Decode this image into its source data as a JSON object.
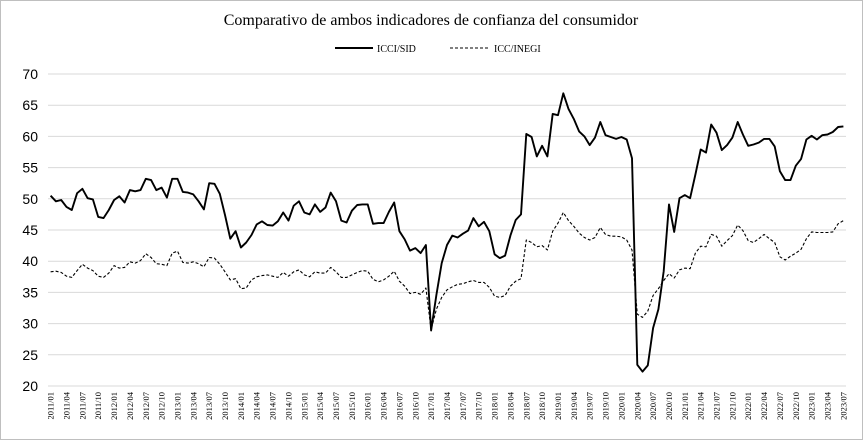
{
  "chart_data": {
    "type": "line",
    "title": "Comparativo de ambos indicadores de confianza del consumidor",
    "xlabel": "",
    "ylabel": "",
    "ylim": [
      20,
      70
    ],
    "yticks": [
      20,
      25,
      30,
      35,
      40,
      45,
      50,
      55,
      60,
      65,
      70
    ],
    "grid": "horizontal",
    "legend_position": "top-center",
    "x_start": "2011/01",
    "x_tick_labels": [
      "2011/01",
      "2011/04",
      "2011/07",
      "2011/10",
      "2012/01",
      "2012/04",
      "2012/07",
      "2012/10",
      "2013/01",
      "2013/04",
      "2013/07",
      "2013/10",
      "2014/01",
      "2014/04",
      "2014/07",
      "2014/10",
      "2015/01",
      "2015/04",
      "2015/07",
      "2015/10",
      "2016/01",
      "2016/04",
      "2016/07",
      "2016/10",
      "2017/01",
      "2017/04",
      "2017/07",
      "2017/10",
      "2018/01",
      "2018/04",
      "2018/07",
      "2018/10",
      "2019/01",
      "2019/04",
      "2019/07",
      "2019/10",
      "2020/01",
      "2020/04",
      "2020/07",
      "2020/10",
      "2021/01",
      "2021/04",
      "2021/07",
      "2021/10",
      "2022/01",
      "2022/04",
      "2022/07",
      "2022/10",
      "2023/01",
      "2023/04",
      "2023/07"
    ],
    "series": [
      {
        "name": "ICCI/SID",
        "color": "#000000",
        "style": "solid",
        "values": [
          50.5,
          49.6,
          49.8,
          48.7,
          48.2,
          50.9,
          51.6,
          50.1,
          49.9,
          47.1,
          46.9,
          48.2,
          49.8,
          50.4,
          49.4,
          51.4,
          51.2,
          51.4,
          53.2,
          53.0,
          51.4,
          51.8,
          50.2,
          53.2,
          53.2,
          51.1,
          51.0,
          50.7,
          49.6,
          48.3,
          52.5,
          52.4,
          50.8,
          47.4,
          43.6,
          44.8,
          42.2,
          43.0,
          44.2,
          45.9,
          46.4,
          45.8,
          45.7,
          46.4,
          47.8,
          46.5,
          48.9,
          49.6,
          47.8,
          47.5,
          49.1,
          47.9,
          48.6,
          51.0,
          49.6,
          46.5,
          46.2,
          48.1,
          49.0,
          49.1,
          49.1,
          46.0,
          46.1,
          46.1,
          47.9,
          49.4,
          44.8,
          43.5,
          41.7,
          42.1,
          41.3,
          42.6,
          28.9,
          34.6,
          39.7,
          42.6,
          44.1,
          43.8,
          44.4,
          44.9,
          46.9,
          45.6,
          46.3,
          44.8,
          41.1,
          40.5,
          40.9,
          44.1,
          46.6,
          47.5,
          60.4,
          59.9,
          56.8,
          58.5,
          56.8,
          63.6,
          63.4,
          66.9,
          64.4,
          62.8,
          60.8,
          60.0,
          58.6,
          59.8,
          62.3,
          60.2,
          59.9,
          59.6,
          59.9,
          59.5,
          56.5,
          23.4,
          22.3,
          23.3,
          29.3,
          32.3,
          38.4,
          49.1,
          44.7,
          50.1,
          50.6,
          50.1,
          53.9,
          57.9,
          57.4,
          61.9,
          60.6,
          57.8,
          58.6,
          59.8,
          62.3,
          60.3,
          58.5,
          58.7,
          59.0,
          59.6,
          59.6,
          58.4,
          54.4,
          53.0,
          53.0,
          55.3,
          56.4,
          59.5,
          60.1,
          59.5,
          60.2,
          60.3,
          60.7,
          61.5,
          61.6
        ]
      },
      {
        "name": "ICC/INEGI",
        "color": "#000000",
        "style": "dashed",
        "values": [
          38.3,
          38.4,
          38.2,
          37.6,
          37.4,
          38.5,
          39.5,
          38.9,
          38.5,
          37.6,
          37.4,
          38.1,
          39.3,
          38.9,
          39.0,
          39.9,
          39.7,
          40.1,
          41.2,
          40.6,
          39.6,
          39.5,
          39.3,
          41.3,
          41.6,
          39.8,
          39.7,
          39.9,
          39.6,
          39.1,
          40.6,
          40.5,
          39.5,
          38.3,
          37.0,
          37.2,
          35.6,
          35.7,
          37.0,
          37.5,
          37.7,
          37.8,
          37.6,
          37.4,
          38.2,
          37.6,
          38.3,
          38.6,
          37.8,
          37.5,
          38.3,
          38.1,
          38.1,
          39.0,
          38.3,
          37.4,
          37.4,
          37.8,
          38.2,
          38.5,
          38.4,
          37.1,
          36.7,
          37.0,
          37.6,
          38.4,
          36.8,
          36.0,
          34.8,
          35.0,
          34.7,
          35.7,
          29.0,
          32.3,
          34.2,
          35.4,
          35.9,
          36.3,
          36.4,
          36.7,
          36.9,
          36.6,
          36.6,
          35.8,
          34.4,
          34.2,
          34.5,
          36.0,
          36.8,
          37.2,
          43.4,
          43.0,
          42.3,
          42.5,
          41.8,
          44.8,
          46.1,
          47.8,
          46.5,
          45.6,
          44.5,
          43.8,
          43.4,
          43.8,
          45.4,
          44.3,
          44.0,
          44.0,
          43.9,
          43.4,
          41.8,
          31.5,
          31.0,
          32.0,
          34.5,
          35.6,
          36.9,
          38.0,
          37.3,
          38.6,
          38.9,
          38.8,
          41.3,
          42.4,
          42.3,
          44.3,
          44.0,
          42.4,
          43.3,
          44.1,
          45.8,
          44.9,
          43.3,
          43.0,
          43.6,
          44.3,
          43.6,
          43.0,
          40.7,
          40.2,
          40.8,
          41.3,
          41.9,
          43.6,
          44.7,
          44.6,
          44.6,
          44.6,
          44.7,
          46.0,
          46.5
        ]
      }
    ]
  }
}
